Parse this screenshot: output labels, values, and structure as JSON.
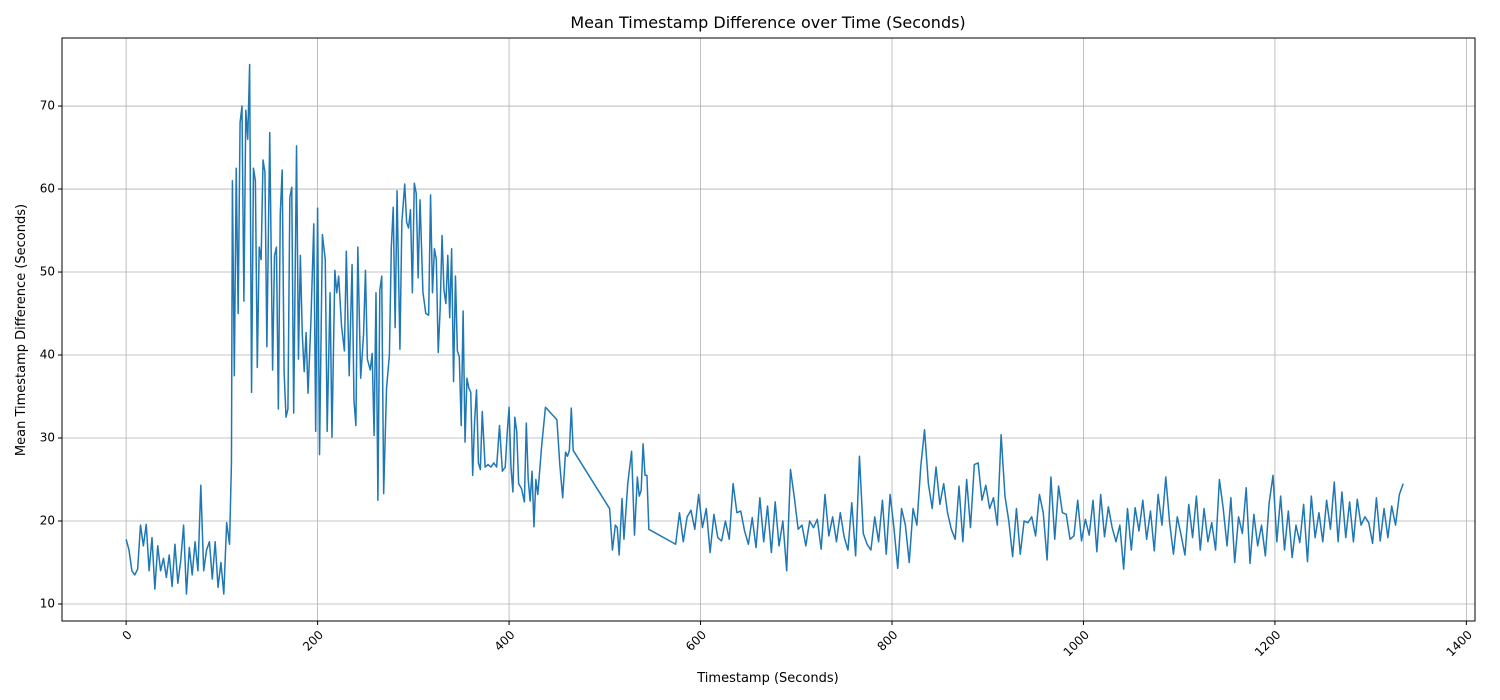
{
  "chart_data": {
    "type": "line",
    "title": "Mean Timestamp Difference over Time (Seconds)",
    "x_label": "Timestamp (Seconds)",
    "y_label": "Mean Timestamp Difference (Seconds)",
    "color": "#1f77b4",
    "grid": true,
    "xlim": [
      -67,
      1409
    ],
    "ylim": [
      7.95,
      78.2
    ],
    "xticks": [
      0,
      200,
      400,
      600,
      800,
      1000,
      1200,
      1400
    ],
    "yticks": [
      10,
      20,
      30,
      40,
      50,
      60,
      70
    ],
    "x": [
      0,
      3,
      6,
      9,
      12,
      15,
      18,
      21,
      24,
      27,
      30,
      33,
      36,
      39,
      42,
      45,
      48,
      51,
      54,
      57,
      60,
      63,
      66,
      69,
      72,
      75,
      78,
      81,
      84,
      87,
      90,
      93,
      96,
      99,
      102,
      105,
      108,
      110,
      111,
      113,
      115,
      117,
      119,
      121,
      123,
      125,
      127,
      129,
      131,
      133,
      135,
      137,
      139,
      141,
      143,
      145,
      147,
      150,
      153,
      155,
      157,
      159,
      161,
      163,
      165,
      167,
      169,
      171,
      173,
      175,
      178,
      180,
      182,
      184,
      186,
      188,
      190,
      193,
      196,
      198,
      200,
      202,
      205,
      208,
      210,
      213,
      215,
      218,
      220,
      222,
      225,
      228,
      230,
      233,
      236,
      238,
      240,
      242,
      245,
      248,
      250,
      252,
      255,
      257,
      259,
      261,
      263,
      265,
      267,
      269,
      272,
      275,
      277,
      279,
      281,
      283,
      286,
      288,
      291,
      293,
      295,
      297,
      299,
      301,
      303,
      305,
      307,
      310,
      313,
      316,
      318,
      320,
      322,
      324,
      326,
      328,
      330,
      332,
      334,
      336,
      338,
      340,
      342,
      344,
      346,
      348,
      350,
      352,
      354,
      356,
      358,
      360,
      362,
      364,
      366,
      368,
      370,
      372,
      375,
      378,
      381,
      384,
      387,
      390,
      393,
      396,
      398,
      400,
      402,
      404,
      406,
      408,
      410,
      413,
      416,
      418,
      420,
      422,
      424,
      426,
      428,
      430,
      434,
      438,
      450,
      453,
      456,
      459,
      461,
      463,
      465,
      467,
      505,
      508,
      511,
      513,
      515,
      518,
      520,
      524,
      528,
      531,
      534,
      536,
      538,
      540,
      542,
      544,
      546,
      574,
      578,
      582,
      586,
      590,
      594,
      598,
      602,
      606,
      610,
      614,
      618,
      622,
      626,
      630,
      634,
      638,
      642,
      646,
      650,
      654,
      658,
      662,
      666,
      670,
      674,
      678,
      682,
      686,
      690,
      694,
      698,
      702,
      706,
      710,
      714,
      718,
      722,
      726,
      730,
      734,
      738,
      742,
      746,
      750,
      754,
      758,
      762,
      766,
      770,
      774,
      778,
      782,
      786,
      790,
      794,
      798,
      802,
      806,
      810,
      814,
      818,
      822,
      826,
      830,
      834,
      838,
      842,
      846,
      850,
      854,
      858,
      862,
      866,
      870,
      874,
      878,
      882,
      886,
      890,
      894,
      898,
      902,
      906,
      910,
      914,
      918,
      922,
      926,
      930,
      934,
      938,
      942,
      946,
      950,
      954,
      958,
      962,
      966,
      970,
      974,
      978,
      982,
      986,
      990,
      994,
      998,
      1002,
      1006,
      1010,
      1014,
      1018,
      1022,
      1026,
      1030,
      1034,
      1038,
      1042,
      1046,
      1050,
      1054,
      1058,
      1062,
      1066,
      1070,
      1074,
      1078,
      1082,
      1086,
      1090,
      1094,
      1098,
      1102,
      1106,
      1110,
      1114,
      1118,
      1122,
      1126,
      1130,
      1134,
      1138,
      1142,
      1146,
      1150,
      1154,
      1158,
      1162,
      1166,
      1170,
      1174,
      1178,
      1182,
      1186,
      1190,
      1194,
      1198,
      1202,
      1206,
      1210,
      1214,
      1218,
      1222,
      1226,
      1230,
      1234,
      1238,
      1242,
      1246,
      1250,
      1254,
      1258,
      1262,
      1266,
      1270,
      1274,
      1278,
      1282,
      1286,
      1290,
      1294,
      1298,
      1302,
      1306,
      1310,
      1314,
      1318,
      1322,
      1326,
      1330,
      1334
    ],
    "values": [
      17.8,
      16.5,
      14,
      13.5,
      14.2,
      19.5,
      17,
      19.6,
      14,
      18,
      11.8,
      17,
      14,
      15.5,
      13.2,
      15.9,
      12.1,
      17.2,
      12.5,
      15.2,
      19.5,
      11.2,
      16.8,
      13.5,
      17.5,
      14,
      24.3,
      14,
      16.5,
      17.5,
      13,
      17.5,
      12,
      15,
      11.2,
      19.8,
      17.2,
      27,
      61,
      37.5,
      62.5,
      45,
      68,
      70,
      46.5,
      69.5,
      66,
      75,
      35.5,
      62.5,
      61,
      38.5,
      53,
      51.5,
      63.5,
      62,
      41,
      66.8,
      38.2,
      52,
      53,
      33.5,
      57,
      62.3,
      38,
      32.5,
      33.5,
      59,
      60.2,
      33,
      65.2,
      39.5,
      52,
      42.5,
      38,
      42.7,
      35.4,
      44,
      55.8,
      30.8,
      57.7,
      28,
      54.5,
      51.5,
      30.8,
      47.5,
      30.1,
      50.2,
      47.5,
      49.5,
      43.5,
      40.5,
      52.5,
      37.5,
      50.9,
      34.5,
      31.5,
      53,
      37.2,
      42.5,
      50.2,
      39.5,
      38.2,
      40.2,
      30.3,
      47.5,
      22.5,
      47.8,
      49.5,
      23.3,
      36,
      40,
      53,
      57.8,
      43.3,
      59.8,
      40.7,
      56,
      60.6,
      56,
      55.3,
      57.5,
      47.5,
      60.7,
      59.5,
      49.3,
      58.7,
      47.6,
      45,
      44.8,
      59.3,
      47.5,
      52.8,
      51.5,
      40.3,
      45.5,
      54.4,
      47.8,
      46.2,
      52,
      44.5,
      52.8,
      36.8,
      49.5,
      40.5,
      39.8,
      31.5,
      45.3,
      29.5,
      37.2,
      36,
      35.5,
      25.5,
      32,
      35.8,
      27,
      26.2,
      33.2,
      26.5,
      26.8,
      26.5,
      27,
      26.5,
      31.5,
      26,
      26.5,
      30.5,
      33.7,
      26.5,
      23.5,
      32.5,
      30.8,
      24.5,
      23.9,
      22.3,
      31.8,
      25,
      22.4,
      26,
      19.3,
      25,
      23.2,
      29,
      33.7,
      32.2,
      26.8,
      22.8,
      28.3,
      27.8,
      28.5,
      33.6,
      28.5,
      21.5,
      16.5,
      19.5,
      19.2,
      15.9,
      22.7,
      17.8,
      24.5,
      28.4,
      18.3,
      25.3,
      23,
      23.7,
      29.3,
      25.5,
      25.5,
      19,
      17.2,
      21,
      17.5,
      20.5,
      21.3,
      19,
      23.2,
      19.2,
      21.5,
      16.2,
      20.8,
      18,
      17.6,
      20,
      17.8,
      24.5,
      21,
      21.2,
      18.8,
      17.2,
      20.4,
      16.8,
      22.8,
      17.5,
      21.8,
      16.2,
      22.3,
      17,
      20,
      14,
      26.2,
      22.8,
      19,
      19.5,
      17,
      20,
      19.2,
      20.2,
      16.6,
      23.2,
      18.2,
      20.5,
      17.5,
      21,
      18.1,
      16.5,
      22.2,
      15.8,
      27.8,
      18.5,
      17.2,
      16.5,
      20.5,
      17.5,
      22.5,
      16,
      23.2,
      19.2,
      14.3,
      21.5,
      19.5,
      15,
      21.5,
      19.5,
      26.5,
      31,
      24.5,
      21.5,
      26.5,
      22,
      24.5,
      21,
      19,
      17.8,
      24.2,
      17.5,
      25,
      19.2,
      26.8,
      27,
      22.5,
      24.3,
      21.5,
      22.8,
      19.5,
      30.4,
      23,
      20,
      15.7,
      21.5,
      16,
      20,
      19.8,
      20.5,
      18.2,
      23.2,
      21,
      15.3,
      25.3,
      17.8,
      24.2,
      21,
      20.8,
      17.8,
      18.2,
      22.5,
      17.6,
      20.2,
      18.3,
      22.5,
      16.3,
      23.2,
      18.1,
      21.7,
      19.2,
      17.5,
      19.5,
      14.2,
      21.5,
      16.5,
      21.6,
      18.8,
      22.5,
      17.8,
      21.2,
      16.4,
      23.2,
      19.5,
      25.3,
      19.8,
      16,
      20.5,
      18.3,
      15.9,
      22,
      18,
      23,
      16.5,
      21.5,
      17.5,
      19.8,
      16.5,
      25,
      21.5,
      17,
      22.8,
      15,
      20.5,
      18.5,
      24,
      14.9,
      20.8,
      17,
      19.5,
      15.8,
      22.2,
      25.5,
      17.5,
      23,
      16.5,
      21.2,
      15.6,
      19.5,
      17.4,
      22,
      15.1,
      23,
      18,
      21,
      17.5,
      22.5,
      19,
      24.7,
      17.5,
      23.5,
      18,
      22.3,
      17.5,
      22.6,
      19.5,
      20.5,
      19.8,
      17.3,
      22.8,
      17.6,
      21.5,
      18,
      21.8,
      19.5,
      23.2,
      24.5
    ]
  }
}
